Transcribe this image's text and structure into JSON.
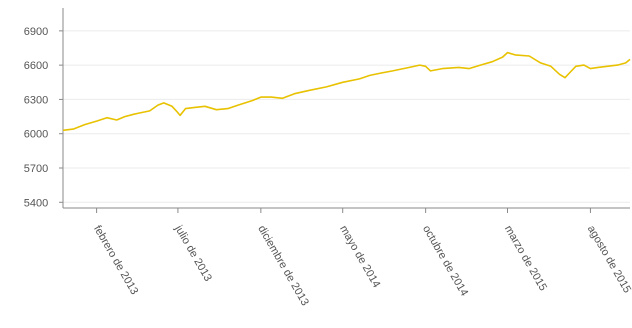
{
  "chart_data": {
    "type": "line",
    "title": "",
    "xlabel": "",
    "ylabel": "",
    "grid": true,
    "line_color": "#e8c200",
    "x_range": [
      "2012-12-01",
      "2015-10-13"
    ],
    "ylim": [
      5350,
      7100
    ],
    "y_ticks": [
      5400,
      5700,
      6000,
      6300,
      6600,
      6900
    ],
    "y_tick_labels": [
      "5400",
      "5700",
      "6000",
      "6300",
      "6600",
      "6900"
    ],
    "x_ticks": [
      "2013-02-01",
      "2013-07-01",
      "2013-12-01",
      "2014-05-01",
      "2014-10-01",
      "2015-03-01",
      "2015-08-01"
    ],
    "x_tick_labels": [
      "febrero de 2013",
      "julio de 2013",
      "diciembre de 2013",
      "mayo de 2014",
      "octubre de 2014",
      "marzo de 2015",
      "agosto de 2015"
    ],
    "series": [
      {
        "values": [
          [
            "2012-12-01",
            6030
          ],
          [
            "2012-12-20",
            6040
          ],
          [
            "2013-01-10",
            6080
          ],
          [
            "2013-02-01",
            6110
          ],
          [
            "2013-02-20",
            6140
          ],
          [
            "2013-03-10",
            6120
          ],
          [
            "2013-03-25",
            6150
          ],
          [
            "2013-04-10",
            6170
          ],
          [
            "2013-04-20",
            6180
          ],
          [
            "2013-05-10",
            6200
          ],
          [
            "2013-05-25",
            6250
          ],
          [
            "2013-06-05",
            6270
          ],
          [
            "2013-06-20",
            6240
          ],
          [
            "2013-06-28",
            6200
          ],
          [
            "2013-07-05",
            6160
          ],
          [
            "2013-07-15",
            6220
          ],
          [
            "2013-08-01",
            6230
          ],
          [
            "2013-08-20",
            6240
          ],
          [
            "2013-09-10",
            6210
          ],
          [
            "2013-10-01",
            6220
          ],
          [
            "2013-10-20",
            6250
          ],
          [
            "2013-11-15",
            6290
          ],
          [
            "2013-12-01",
            6320
          ],
          [
            "2013-12-20",
            6320
          ],
          [
            "2014-01-10",
            6310
          ],
          [
            "2014-02-01",
            6350
          ],
          [
            "2014-03-01",
            6380
          ],
          [
            "2014-04-01",
            6410
          ],
          [
            "2014-05-01",
            6450
          ],
          [
            "2014-06-01",
            6480
          ],
          [
            "2014-06-20",
            6510
          ],
          [
            "2014-07-10",
            6530
          ],
          [
            "2014-08-01",
            6550
          ],
          [
            "2014-09-01",
            6580
          ],
          [
            "2014-09-20",
            6600
          ],
          [
            "2014-10-01",
            6590
          ],
          [
            "2014-10-10",
            6550
          ],
          [
            "2014-11-01",
            6570
          ],
          [
            "2014-12-01",
            6580
          ],
          [
            "2014-12-20",
            6570
          ],
          [
            "2015-01-10",
            6600
          ],
          [
            "2015-02-01",
            6630
          ],
          [
            "2015-02-20",
            6670
          ],
          [
            "2015-03-01",
            6710
          ],
          [
            "2015-03-15",
            6690
          ],
          [
            "2015-04-10",
            6680
          ],
          [
            "2015-05-01",
            6620
          ],
          [
            "2015-05-20",
            6590
          ],
          [
            "2015-06-05",
            6520
          ],
          [
            "2015-06-15",
            6490
          ],
          [
            "2015-06-25",
            6540
          ],
          [
            "2015-07-05",
            6590
          ],
          [
            "2015-07-20",
            6600
          ],
          [
            "2015-08-01",
            6570
          ],
          [
            "2015-08-15",
            6580
          ],
          [
            "2015-09-01",
            6590
          ],
          [
            "2015-09-20",
            6600
          ],
          [
            "2015-10-05",
            6620
          ],
          [
            "2015-10-13",
            6650
          ]
        ]
      }
    ]
  }
}
